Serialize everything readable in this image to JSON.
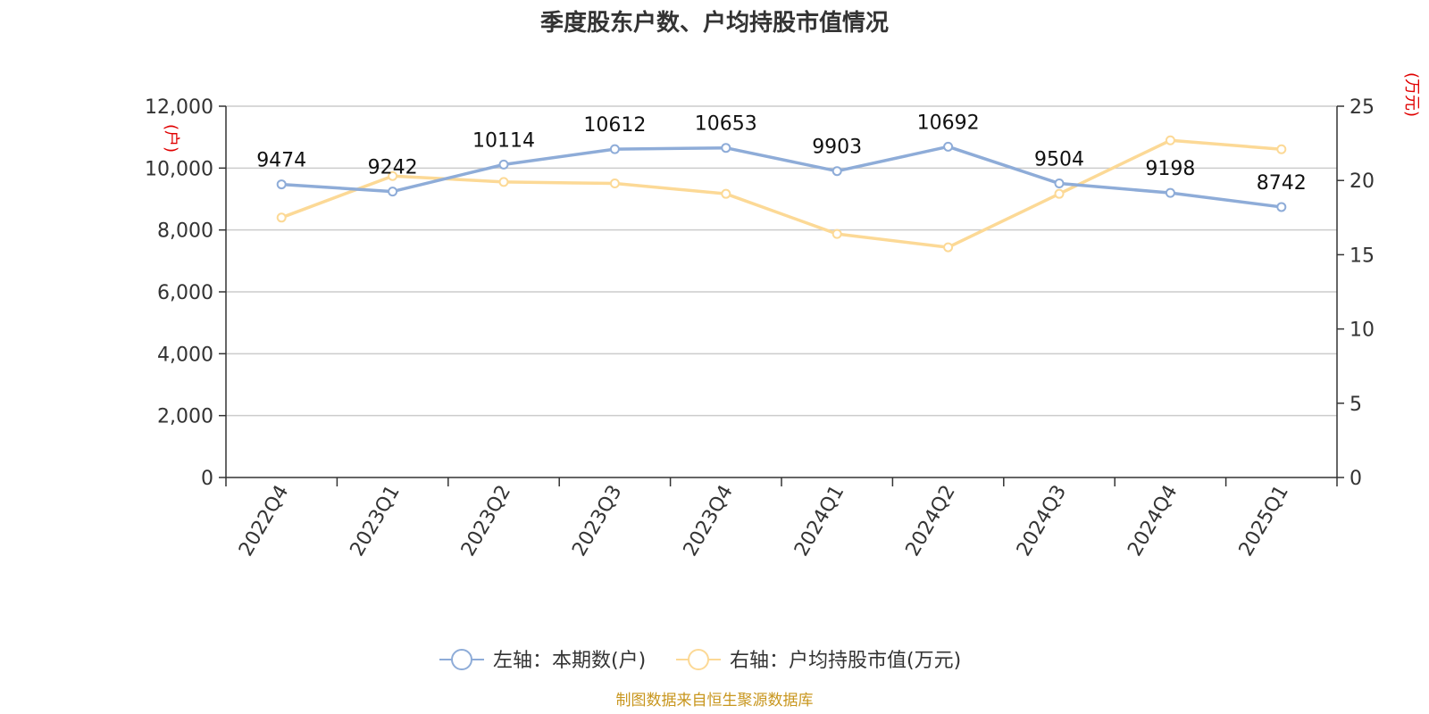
{
  "chart_data": {
    "type": "line",
    "title": "季度股东户数、户均持股市值情况",
    "categories": [
      "2022Q4",
      "2023Q1",
      "2023Q2",
      "2023Q3",
      "2023Q4",
      "2024Q1",
      "2024Q2",
      "2024Q3",
      "2024Q4",
      "2025Q1"
    ],
    "y_left": {
      "unit": "(户)",
      "range": [
        0,
        12000
      ],
      "ticks": [
        0,
        2000,
        4000,
        6000,
        8000,
        10000,
        12000
      ],
      "tick_labels": [
        "0",
        "2,000",
        "4,000",
        "6,000",
        "8,000",
        "10,000",
        "12,000"
      ]
    },
    "y_right": {
      "unit": "(万元)",
      "range": [
        0,
        25
      ],
      "ticks": [
        0,
        5,
        10,
        15,
        20,
        25
      ],
      "tick_labels": [
        "0",
        "5",
        "10",
        "15",
        "20",
        "25"
      ]
    },
    "series": [
      {
        "name": "左轴：本期数(户)",
        "axis": "left",
        "color": "#8eacd8",
        "values": [
          9474,
          9242,
          10114,
          10612,
          10653,
          9903,
          10692,
          9504,
          9198,
          8742
        ],
        "labels": [
          "9474",
          "9242",
          "10114",
          "10612",
          "10653",
          "9903",
          "10692",
          "9504",
          "9198",
          "8742"
        ]
      },
      {
        "name": "右轴：户均持股市值(万元)",
        "axis": "right",
        "color": "#fcd996",
        "values": [
          17.5,
          20.3,
          19.9,
          19.8,
          19.1,
          16.4,
          15.5,
          19.1,
          22.7,
          22.1
        ]
      }
    ],
    "grid": "horizontal",
    "legend_position": "bottom"
  },
  "source": "制图数据来自恒生聚源数据库"
}
